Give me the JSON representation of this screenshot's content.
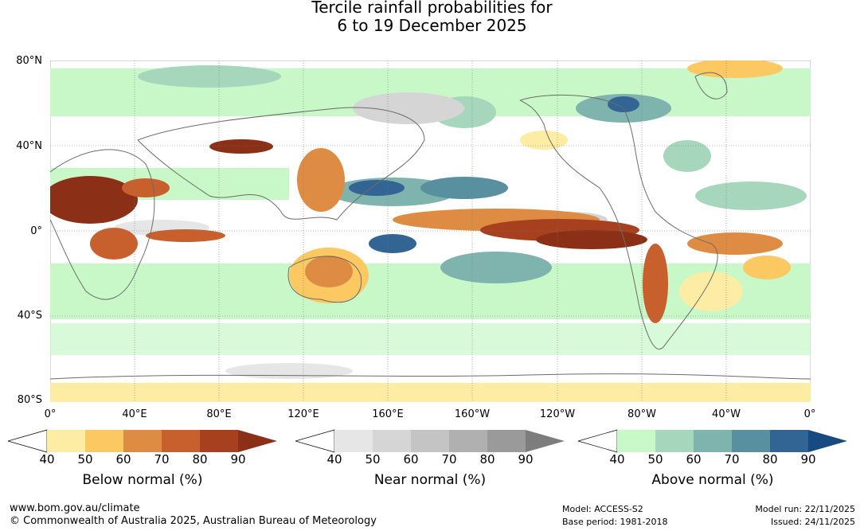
{
  "title": {
    "line1": "Tercile rainfall probabilities for",
    "line2": "6 to 19 December 2025"
  },
  "map": {
    "lat_labels": [
      "80°N",
      "40°N",
      "0°",
      "40°S",
      "80°S"
    ],
    "lon_labels": [
      "0°",
      "40°E",
      "80°E",
      "120°E",
      "160°E",
      "160°W",
      "120°W",
      "80°W",
      "40°W",
      "0°"
    ]
  },
  "legends": [
    {
      "title": "Below normal (%)",
      "ticks": [
        "40",
        "50",
        "60",
        "70",
        "80",
        "90"
      ],
      "colors": [
        "#ffffff",
        "#fdeca4",
        "#fbc862",
        "#de8c44",
        "#c8602e",
        "#a7401f",
        "#8c2f17"
      ]
    },
    {
      "title": "Near normal (%)",
      "ticks": [
        "40",
        "50",
        "60",
        "70",
        "80",
        "90"
      ],
      "colors": [
        "#ffffff",
        "#e6e6e6",
        "#d5d5d5",
        "#c4c4c4",
        "#b0b0b0",
        "#9a9a9a",
        "#7d7d7d"
      ]
    },
    {
      "title": "Above normal (%)",
      "ticks": [
        "40",
        "50",
        "60",
        "70",
        "80",
        "90"
      ],
      "colors": [
        "#ffffff",
        "#c8f8c8",
        "#a6d6bc",
        "#7eb3ae",
        "#5990a0",
        "#326594",
        "#174a80"
      ]
    }
  ],
  "footer": {
    "url": "www.bom.gov.au/climate",
    "copyright": "© Commonwealth of Australia 2025, Australian Bureau of Meteorology",
    "model": "Model: ACCESS-S2",
    "base_period": "Base period: 1981-2018",
    "model_run": "Model run: 22/11/2025",
    "issued": "Issued: 24/11/2025"
  }
}
